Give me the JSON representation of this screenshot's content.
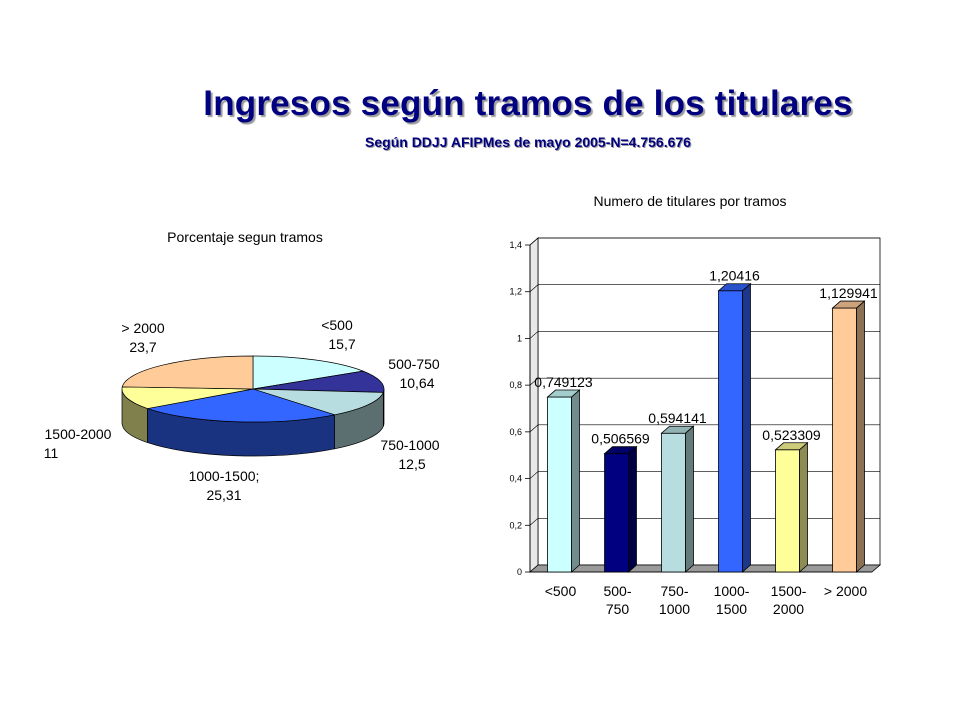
{
  "slide": {
    "title": "Ingresos según tramos de los titulares",
    "subtitle": "Según DDJJ AFIPMes de mayo 2005-N=4.756.676"
  },
  "chart_data": [
    {
      "type": "pie",
      "title": "Porcentaje segun tramos",
      "slices": [
        {
          "label": "<500",
          "value_label": "15,7",
          "value": 15.7,
          "color": "#ccffff"
        },
        {
          "label": "500-750",
          "value_label": "10,64",
          "value": 10.64,
          "color": "#333399"
        },
        {
          "label": "750-1000",
          "value_label": "12,5",
          "value": 12.5,
          "color": "#b7dde0"
        },
        {
          "label": "1000-1500;",
          "value_label": "25,31",
          "value": 25.31,
          "color": "#3366ff"
        },
        {
          "label": "1500-2000",
          "value_label": "11",
          "value": 11,
          "color": "#ffff99"
        },
        {
          "label": "> 2000",
          "value_label": "23,7",
          "value": 23.7,
          "color": "#ffcc99"
        }
      ]
    },
    {
      "type": "bar",
      "title": "Numero de titulares por tramos",
      "categories": [
        [
          "<500"
        ],
        [
          "500-",
          "750"
        ],
        [
          "750-",
          "1000"
        ],
        [
          "1000-",
          "1500"
        ],
        [
          "1500-",
          "2000"
        ],
        [
          "> 2000"
        ]
      ],
      "values": [
        0.749123,
        0.506569,
        0.594141,
        1.20416,
        0.523309,
        1.129941
      ],
      "value_labels": [
        "0,749123",
        "0,506569",
        "0,594141",
        "1,20416",
        "0,523309",
        "1,129941"
      ],
      "colors": [
        "#ccffff",
        "#000080",
        "#b7dde0",
        "#3366ff",
        "#ffff99",
        "#ffcc99"
      ],
      "yticks": [
        "0",
        "0,2",
        "0,4",
        "0,6",
        "0,8",
        "1",
        "1,2",
        "1,4"
      ],
      "ylim": [
        0,
        1.4
      ],
      "grid": true
    }
  ]
}
